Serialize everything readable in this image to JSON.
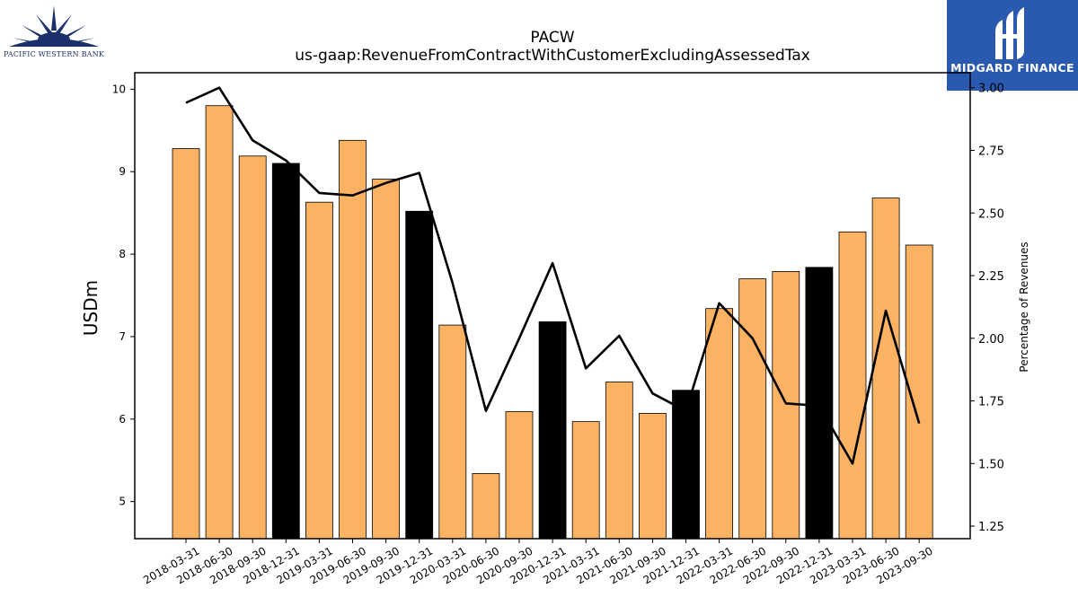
{
  "brand": {
    "left_logo_text": "PACIFIC WESTERN BANK",
    "right_logo_text": "MIDGARD FINANCE",
    "right_logo_bg": "#2a59b0",
    "left_logo_color": "#1b2f6b"
  },
  "chart_data": {
    "type": "bar",
    "title": "PACW",
    "subtitle": "us-gaap:RevenueFromContractWithCustomerExcludingAssessedTax",
    "ylabel": "USDm",
    "y2label": "Percentage of Revenues",
    "ylim": [
      4.55,
      10.2
    ],
    "y2lim": [
      1.2,
      3.06
    ],
    "yticks": [
      5,
      6,
      7,
      8,
      9,
      10
    ],
    "y2ticks": [
      1.25,
      1.5,
      1.75,
      2.0,
      2.25,
      2.5,
      2.75,
      3.0
    ],
    "categories": [
      "2018-03-31",
      "2018-06-30",
      "2018-09-30",
      "2018-12-31",
      "2019-03-31",
      "2019-06-30",
      "2019-09-30",
      "2019-12-31",
      "2020-03-31",
      "2020-06-30",
      "2020-09-30",
      "2020-12-31",
      "2021-03-31",
      "2021-06-30",
      "2021-09-30",
      "2021-12-31",
      "2022-03-31",
      "2022-06-30",
      "2022-09-30",
      "2022-12-31",
      "2023-03-31",
      "2023-06-30",
      "2023-09-30"
    ],
    "series": [
      {
        "kind": "bar",
        "axis": "left",
        "values": [
          9.28,
          9.8,
          9.19,
          9.1,
          8.63,
          9.38,
          8.91,
          8.52,
          7.14,
          5.34,
          6.09,
          7.18,
          5.97,
          6.45,
          6.07,
          6.35,
          7.34,
          7.7,
          7.79,
          7.84,
          8.27,
          8.68,
          8.11
        ],
        "colors": [
          "#fbb263",
          "#fbb263",
          "#fbb263",
          "#000000",
          "#fbb263",
          "#fbb263",
          "#fbb263",
          "#000000",
          "#fbb263",
          "#fbb263",
          "#fbb263",
          "#000000",
          "#fbb263",
          "#fbb263",
          "#fbb263",
          "#000000",
          "#fbb263",
          "#fbb263",
          "#fbb263",
          "#000000",
          "#fbb263",
          "#fbb263",
          "#fbb263"
        ]
      },
      {
        "kind": "line",
        "axis": "right",
        "color": "#000000",
        "values": [
          2.94,
          3.0,
          2.79,
          2.71,
          2.58,
          2.57,
          2.62,
          2.66,
          2.22,
          1.71,
          2.0,
          2.3,
          1.88,
          2.01,
          1.78,
          1.71,
          2.14,
          2.0,
          1.74,
          1.73,
          1.5,
          2.11,
          1.66
        ]
      }
    ],
    "grid": false,
    "legend": "none"
  }
}
